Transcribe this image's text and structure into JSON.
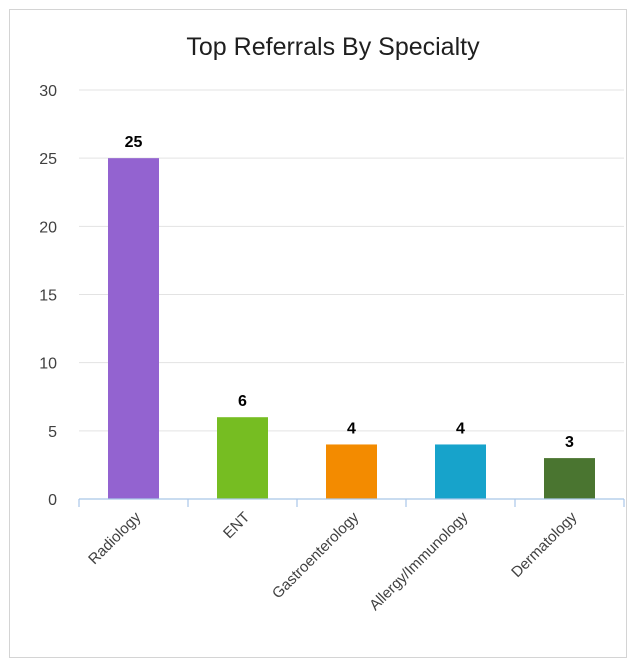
{
  "chart_data": {
    "type": "bar",
    "title": "Top Referrals By Specialty",
    "xlabel": "",
    "ylabel": "",
    "categories": [
      "Radiology",
      "ENT",
      "Gastroenterology",
      "Allergy/Immunology",
      "Dermatology"
    ],
    "values": [
      25,
      6,
      4,
      4,
      3
    ],
    "data_labels": [
      "25",
      "6",
      "4",
      "4",
      "3"
    ],
    "ylim": [
      0,
      30
    ],
    "y_ticks": [
      0,
      5,
      10,
      15,
      20,
      25,
      30
    ],
    "grid": true,
    "legend": "none",
    "colors": [
      "#9363d0",
      "#76bd22",
      "#f38b00",
      "#17a3cb",
      "#4a7530"
    ]
  }
}
